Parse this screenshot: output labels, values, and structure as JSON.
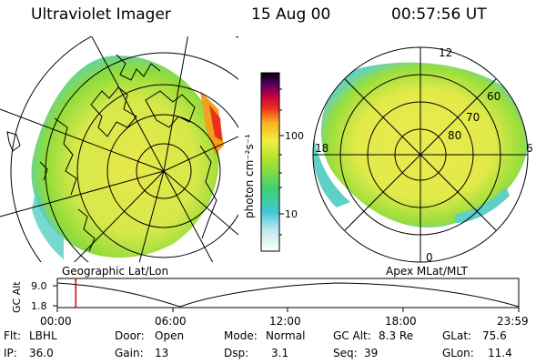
{
  "header": {
    "instrument": "Ultraviolet Imager",
    "date": "15 Aug 00",
    "time": "00:57:56 UT"
  },
  "colorbar": {
    "unit_label": "photon cm⁻²s⁻¹",
    "ticks": [
      "100",
      "10"
    ],
    "scale": "log"
  },
  "left_panel": {
    "label": "Geographic Lat/Lon"
  },
  "right_panel": {
    "label": "Apex  MLat/MLT",
    "mlt_labels": [
      "12",
      "18",
      "6",
      "0"
    ],
    "mlat_labels": [
      "60",
      "70",
      "80"
    ]
  },
  "altitude_plot": {
    "ylabel": "GC Alt",
    "yticks": [
      "9.0",
      "1.8"
    ],
    "xticks": [
      "00:00",
      "06:00",
      "12:00",
      "18:00",
      "23:59"
    ],
    "current_time_fraction": 0.04,
    "marker_color": "#cc0000"
  },
  "metadata": {
    "filter_label": "Flt:",
    "filter_value": "LBHL",
    "ip_label": "IP:",
    "ip_value": "36.0",
    "door_label": "Door:",
    "door_value": "Open",
    "gain_label": "Gain:",
    "gain_value": "13",
    "mode_label": "Mode:",
    "mode_value": "Normal",
    "dsp_label": "Dsp:",
    "dsp_value": "3.1",
    "gcalt_label": "GC Alt:",
    "gcalt_value": "8.3 Re",
    "seq_label": "Seq:",
    "seq_value": "39",
    "glat_label": "GLat:",
    "glat_value": "75.6",
    "glon_label": "GLon:",
    "glon_value": "11.4"
  },
  "colors": {
    "aurora_green": "#7fd63a",
    "aurora_yellow": "#e8e84a",
    "aurora_cyan": "#3fd0c8"
  }
}
